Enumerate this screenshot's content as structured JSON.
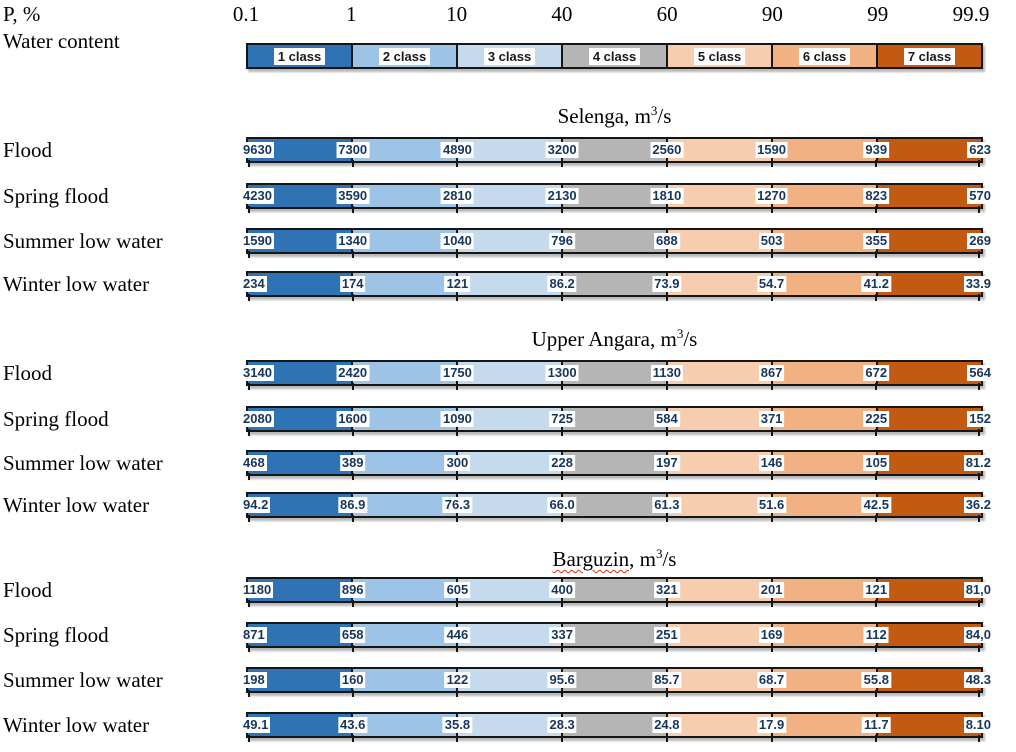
{
  "header": {
    "p_axis_label": "P, %",
    "water_content_label": "Water content"
  },
  "legend": {
    "classes": [
      {
        "label": "1 class",
        "color": "#2e74b5"
      },
      {
        "label": "2 class",
        "color": "#9dc3e6"
      },
      {
        "label": "3 class",
        "color": "#c6daee"
      },
      {
        "label": "4 class",
        "color": "#b5b5b5"
      },
      {
        "label": "5 class",
        "color": "#f7cdaf"
      },
      {
        "label": "6 class",
        "color": "#f1b183"
      },
      {
        "label": "7 class",
        "color": "#c35a11"
      }
    ],
    "border_color": "#161616",
    "value_text_color": "#17365d"
  },
  "chart_data": {
    "type": "table",
    "x_axis": {
      "label": "P, %",
      "ticks": [
        "0.1",
        "1",
        "10",
        "40",
        "60",
        "90",
        "99",
        "99.9"
      ]
    },
    "classes": [
      "1 class",
      "2 class",
      "3 class",
      "4 class",
      "5 class",
      "6 class",
      "7 class"
    ],
    "units_prefix": ", m",
    "units_sup": "3",
    "units_suffix": "/s",
    "rivers": [
      {
        "name": "Selenga",
        "spellcheck_underline": false,
        "rows": [
          {
            "label": "Flood",
            "values": [
              "9630",
              "7300",
              "4890",
              "3200",
              "2560",
              "1590",
              "939",
              "623"
            ]
          },
          {
            "label": "Spring flood",
            "values": [
              "4230",
              "3590",
              "2810",
              "2130",
              "1810",
              "1270",
              "823",
              "570"
            ]
          },
          {
            "label": "Summer low water",
            "values": [
              "1590",
              "1340",
              "1040",
              "796",
              "688",
              "503",
              "355",
              "269"
            ]
          },
          {
            "label": "Winter low water",
            "values": [
              "234",
              "174",
              "121",
              "86.2",
              "73.9",
              "54.7",
              "41.2",
              "33.9"
            ]
          }
        ]
      },
      {
        "name": "Upper Angara",
        "spellcheck_underline": false,
        "rows": [
          {
            "label": "Flood",
            "values": [
              "3140",
              "2420",
              "1750",
              "1300",
              "1130",
              "867",
              "672",
              "564"
            ]
          },
          {
            "label": "Spring flood",
            "values": [
              "2080",
              "1600",
              "1090",
              "725",
              "584",
              "371",
              "225",
              "152"
            ]
          },
          {
            "label": "Summer low water",
            "values": [
              "468",
              "389",
              "300",
              "228",
              "197",
              "146",
              "105",
              "81.2"
            ]
          },
          {
            "label": "Winter low water",
            "values": [
              "94.2",
              "86.9",
              "76.3",
              "66.0",
              "61.3",
              "51.6",
              "42.5",
              "36.2"
            ]
          }
        ]
      },
      {
        "name": "Barguzin",
        "spellcheck_underline": true,
        "rows": [
          {
            "label": "Flood",
            "values": [
              "1180",
              "896",
              "605",
              "400",
              "321",
              "201",
              "121",
              "81,0"
            ]
          },
          {
            "label": "Spring flood",
            "values": [
              "871",
              "658",
              "446",
              "337",
              "251",
              "169",
              "112",
              "84,0"
            ]
          },
          {
            "label": "Summer low water",
            "values": [
              "198",
              "160",
              "122",
              "95.6",
              "85.7",
              "68.7",
              "55.8",
              "48.3"
            ]
          },
          {
            "label": "Winter low water",
            "values": [
              "49.1",
              "43.6",
              "35.8",
              "28.3",
              "24.8",
              "17.9",
              "11.7",
              "8.10"
            ]
          }
        ]
      }
    ]
  }
}
